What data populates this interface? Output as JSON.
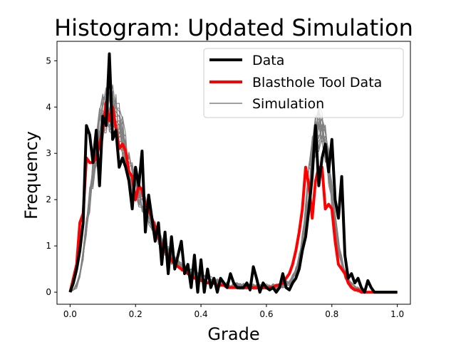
{
  "chart_data": {
    "type": "line",
    "title": "Histogram: Updated Simulation",
    "xlabel": "Grade",
    "ylabel": "Frequency",
    "xlim": [
      -0.04,
      1.04
    ],
    "ylim": [
      -0.26,
      5.42
    ],
    "xticks": [
      0.0,
      0.2,
      0.4,
      0.6,
      0.8,
      1.0
    ],
    "xtick_labels": [
      "0.0",
      "0.2",
      "0.4",
      "0.6",
      "0.8",
      "1.0"
    ],
    "yticks": [
      0,
      1,
      2,
      3,
      4,
      5
    ],
    "ytick_labels": [
      "0",
      "1",
      "2",
      "3",
      "4",
      "5"
    ],
    "grid": false,
    "legend_position": "top-right",
    "series": [
      {
        "name": "Data",
        "color": "#000000",
        "x": [
          0.0,
          0.01,
          0.02,
          0.03,
          0.04,
          0.05,
          0.06,
          0.07,
          0.08,
          0.09,
          0.1,
          0.11,
          0.12,
          0.13,
          0.14,
          0.15,
          0.16,
          0.17,
          0.18,
          0.19,
          0.2,
          0.21,
          0.22,
          0.23,
          0.24,
          0.25,
          0.26,
          0.27,
          0.28,
          0.29,
          0.3,
          0.31,
          0.32,
          0.33,
          0.34,
          0.35,
          0.36,
          0.37,
          0.38,
          0.39,
          0.4,
          0.41,
          0.42,
          0.43,
          0.44,
          0.45,
          0.46,
          0.47,
          0.48,
          0.49,
          0.5,
          0.51,
          0.52,
          0.53,
          0.54,
          0.55,
          0.56,
          0.57,
          0.58,
          0.59,
          0.6,
          0.61,
          0.62,
          0.63,
          0.64,
          0.65,
          0.66,
          0.67,
          0.68,
          0.69,
          0.7,
          0.71,
          0.72,
          0.73,
          0.74,
          0.75,
          0.76,
          0.77,
          0.78,
          0.79,
          0.8,
          0.81,
          0.82,
          0.83,
          0.84,
          0.85,
          0.86,
          0.87,
          0.88,
          0.89,
          0.9,
          0.91,
          0.92,
          0.93,
          0.94,
          0.95,
          0.96,
          0.97,
          0.98,
          0.99,
          1.0
        ],
        "y": [
          0.0,
          0.2,
          0.5,
          0.9,
          1.5,
          3.6,
          3.4,
          2.8,
          3.5,
          2.3,
          3.8,
          3.6,
          5.15,
          3.3,
          3.5,
          2.7,
          2.9,
          2.7,
          2.4,
          1.8,
          2.7,
          2.3,
          3.05,
          1.3,
          2.1,
          1.6,
          1.1,
          1.5,
          0.6,
          1.3,
          0.4,
          1.2,
          0.5,
          0.8,
          1.1,
          0.4,
          0.6,
          0.1,
          0.8,
          0.0,
          0.7,
          0.0,
          0.5,
          0.1,
          0.3,
          0.0,
          0.3,
          0.2,
          0.1,
          0.4,
          0.2,
          0.1,
          0.1,
          0.1,
          0.2,
          0.05,
          0.55,
          0.3,
          0.0,
          0.2,
          0.1,
          0.05,
          0.1,
          0.0,
          0.1,
          0.4,
          0.1,
          0.05,
          0.2,
          0.3,
          0.5,
          0.9,
          1.2,
          1.8,
          2.5,
          3.6,
          2.3,
          2.9,
          3.2,
          2.6,
          3.3,
          2.0,
          1.6,
          2.5,
          0.8,
          0.3,
          0.4,
          0.2,
          0.3,
          0.1,
          0.0,
          0.25,
          0.1,
          0.0,
          0.0,
          0.0,
          0.0,
          0.0,
          0.0,
          0.0,
          0.0
        ]
      },
      {
        "name": "Blasthole Tool Data",
        "color": "#ff0000",
        "x": [
          0.0,
          0.01,
          0.02,
          0.03,
          0.04,
          0.05,
          0.06,
          0.07,
          0.08,
          0.09,
          0.1,
          0.11,
          0.12,
          0.13,
          0.14,
          0.15,
          0.16,
          0.17,
          0.18,
          0.19,
          0.2,
          0.21,
          0.22,
          0.23,
          0.24,
          0.25,
          0.26,
          0.27,
          0.28,
          0.29,
          0.3,
          0.31,
          0.32,
          0.33,
          0.34,
          0.35,
          0.36,
          0.37,
          0.38,
          0.39,
          0.4,
          0.41,
          0.42,
          0.43,
          0.44,
          0.45,
          0.46,
          0.47,
          0.48,
          0.49,
          0.5,
          0.51,
          0.52,
          0.53,
          0.54,
          0.55,
          0.56,
          0.57,
          0.58,
          0.59,
          0.6,
          0.61,
          0.62,
          0.63,
          0.64,
          0.65,
          0.66,
          0.67,
          0.68,
          0.69,
          0.7,
          0.71,
          0.72,
          0.73,
          0.74,
          0.75,
          0.76,
          0.77,
          0.78,
          0.79,
          0.8,
          0.81,
          0.82,
          0.83,
          0.84,
          0.85,
          0.86,
          0.87,
          0.88,
          0.89,
          0.9,
          0.91,
          0.92,
          0.93,
          0.94,
          0.95,
          0.96,
          0.97,
          0.98,
          0.99,
          1.0
        ],
        "y": [
          0.0,
          0.3,
          0.6,
          1.5,
          1.7,
          2.9,
          2.8,
          2.8,
          2.9,
          3.2,
          3.5,
          4.1,
          3.7,
          4.0,
          3.55,
          3.1,
          3.2,
          3.05,
          2.6,
          2.5,
          2.0,
          2.3,
          2.2,
          1.9,
          1.8,
          1.6,
          1.4,
          1.2,
          1.0,
          0.9,
          0.8,
          0.7,
          0.6,
          0.55,
          0.5,
          0.45,
          0.4,
          0.35,
          0.3,
          0.3,
          0.25,
          0.25,
          0.2,
          0.2,
          0.2,
          0.15,
          0.15,
          0.15,
          0.1,
          0.1,
          0.1,
          0.1,
          0.1,
          0.1,
          0.1,
          0.1,
          0.1,
          0.1,
          0.1,
          0.1,
          0.1,
          0.1,
          0.1,
          0.15,
          0.15,
          0.2,
          0.3,
          0.4,
          0.6,
          0.9,
          1.3,
          1.8,
          2.7,
          2.3,
          1.6,
          2.4,
          2.7,
          2.7,
          1.8,
          1.9,
          1.8,
          1.1,
          0.6,
          0.5,
          0.4,
          0.2,
          0.1,
          0.05,
          0.05,
          0.0,
          0.0,
          0.0,
          0.0,
          0.0,
          0.0,
          0.0,
          0.0,
          0.0,
          0.0,
          0.0,
          0.0
        ]
      },
      {
        "name": "Simulation",
        "color": "#808080",
        "x": [
          0.0,
          0.01,
          0.02,
          0.03,
          0.04,
          0.05,
          0.06,
          0.07,
          0.08,
          0.09,
          0.1,
          0.11,
          0.12,
          0.13,
          0.14,
          0.15,
          0.16,
          0.17,
          0.18,
          0.19,
          0.2,
          0.21,
          0.22,
          0.23,
          0.24,
          0.25,
          0.26,
          0.27,
          0.28,
          0.29,
          0.3,
          0.31,
          0.32,
          0.33,
          0.34,
          0.35,
          0.36,
          0.37,
          0.38,
          0.39,
          0.4,
          0.41,
          0.42,
          0.43,
          0.44,
          0.45,
          0.46,
          0.47,
          0.48,
          0.49,
          0.5,
          0.51,
          0.52,
          0.53,
          0.54,
          0.55,
          0.56,
          0.57,
          0.58,
          0.59,
          0.6,
          0.61,
          0.62,
          0.63,
          0.64,
          0.65,
          0.66,
          0.67,
          0.68,
          0.69,
          0.7,
          0.71,
          0.72,
          0.73,
          0.74,
          0.75,
          0.76,
          0.77,
          0.78,
          0.79,
          0.8,
          0.81,
          0.82,
          0.83,
          0.84,
          0.85,
          0.86,
          0.87,
          0.88,
          0.89,
          0.9,
          0.91,
          0.92,
          0.93,
          0.94,
          0.95,
          0.96,
          0.97,
          0.98,
          0.99,
          1.0
        ],
        "y": [
          0.0,
          0.05,
          0.15,
          0.4,
          0.8,
          1.4,
          2.0,
          2.6,
          3.1,
          3.5,
          3.8,
          3.95,
          4.0,
          3.95,
          3.8,
          3.6,
          3.3,
          3.0,
          2.7,
          2.5,
          2.3,
          2.1,
          1.95,
          1.8,
          1.65,
          1.5,
          1.35,
          1.2,
          1.05,
          0.95,
          0.85,
          0.75,
          0.68,
          0.6,
          0.55,
          0.5,
          0.45,
          0.42,
          0.38,
          0.35,
          0.32,
          0.3,
          0.28,
          0.25,
          0.23,
          0.21,
          0.2,
          0.18,
          0.17,
          0.16,
          0.15,
          0.14,
          0.13,
          0.13,
          0.12,
          0.12,
          0.12,
          0.11,
          0.11,
          0.11,
          0.11,
          0.11,
          0.12,
          0.12,
          0.13,
          0.15,
          0.18,
          0.22,
          0.3,
          0.45,
          0.7,
          1.1,
          1.7,
          2.4,
          3.0,
          3.4,
          3.55,
          3.5,
          3.2,
          2.7,
          2.1,
          1.5,
          1.0,
          0.65,
          0.4,
          0.25,
          0.15,
          0.1,
          0.06,
          0.04,
          0.02,
          0.01,
          0.0,
          0.0,
          0.0,
          0.0,
          0.0,
          0.0,
          0.0,
          0.0,
          0.0
        ],
        "realizations": 15
      }
    ]
  }
}
